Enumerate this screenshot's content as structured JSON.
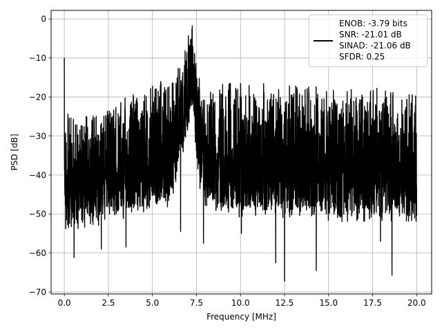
{
  "chart_data": {
    "type": "line",
    "title": "",
    "xlabel": "Frequency [MHz]",
    "ylabel": "PSD [dB]",
    "xlim": [
      -0.75,
      20.85
    ],
    "ylim": [
      -70.5,
      2.2
    ],
    "xticks": [
      0.0,
      2.5,
      5.0,
      7.5,
      10.0,
      12.5,
      15.0,
      17.5,
      20.0
    ],
    "xtick_labels": [
      "0.0",
      "2.5",
      "5.0",
      "7.5",
      "10.0",
      "12.5",
      "15.0",
      "17.5",
      "20.0"
    ],
    "yticks": [
      0,
      -10,
      -20,
      -30,
      -40,
      -50,
      -60,
      -70
    ],
    "ytick_labels": [
      "0",
      "−10",
      "−20",
      "−30",
      "−40",
      "−50",
      "−60",
      "−70"
    ],
    "grid": true,
    "legend_position": "upper-right",
    "legend_entries": [
      "ENOB: -3.79 bits",
      "SNR: -21.01 dB",
      "SINAD: -21.06 dB",
      "SFDR: 0.25"
    ],
    "series": [
      {
        "color": "#000000",
        "envelope": {
          "x": [
            0.0,
            0.02,
            0.1,
            0.5,
            1.0,
            1.5,
            2.0,
            2.5,
            3.0,
            3.5,
            4.0,
            4.5,
            5.0,
            5.5,
            6.0,
            6.5,
            6.9,
            7.0,
            7.1,
            7.2,
            7.25,
            7.3,
            7.4,
            7.5,
            7.6,
            7.8,
            8.0,
            9.0,
            10.0,
            11.0,
            12.0,
            13.0,
            14.0,
            15.0,
            16.0,
            17.0,
            18.0,
            19.0,
            20.0
          ],
          "upper": [
            -10,
            -22,
            -23,
            -24.5,
            -23.5,
            -23,
            -22.5,
            -22,
            -20.5,
            -19.5,
            -18.5,
            -17.5,
            -16.5,
            -15.5,
            -15,
            -12,
            -6,
            -4,
            -2,
            -0.5,
            -0.2,
            -1,
            -5,
            -10,
            -14,
            -15.5,
            -15.5,
            -15.5,
            -16,
            -16,
            -16,
            -16.5,
            -16.5,
            -17,
            -17,
            -17.5,
            -17.5,
            -18,
            -18
          ],
          "lower": [
            -38,
            -48,
            -52,
            -53,
            -52,
            -51,
            -51,
            -50,
            -50,
            -49,
            -49,
            -48,
            -48,
            -47,
            -47,
            -37,
            -29,
            -28,
            -26,
            -23,
            -22,
            -23,
            -27,
            -35,
            -40,
            -44,
            -46,
            -48,
            -49,
            -49,
            -49,
            -49,
            -49,
            -50,
            -50,
            -50,
            -50,
            -50,
            -50
          ]
        },
        "dips": [
          {
            "x": 0.08,
            "y": -53.8
          },
          {
            "x": 0.55,
            "y": -61.2
          },
          {
            "x": 2.1,
            "y": -59
          },
          {
            "x": 3.5,
            "y": -58.5
          },
          {
            "x": 6.6,
            "y": -54.5
          },
          {
            "x": 7.9,
            "y": -57.5
          },
          {
            "x": 10.05,
            "y": -55
          },
          {
            "x": 12.0,
            "y": -62.5
          },
          {
            "x": 12.5,
            "y": -67.2
          },
          {
            "x": 14.3,
            "y": -64.5
          },
          {
            "x": 17.95,
            "y": -57
          },
          {
            "x": 18.6,
            "y": -65.7
          }
        ]
      }
    ]
  }
}
